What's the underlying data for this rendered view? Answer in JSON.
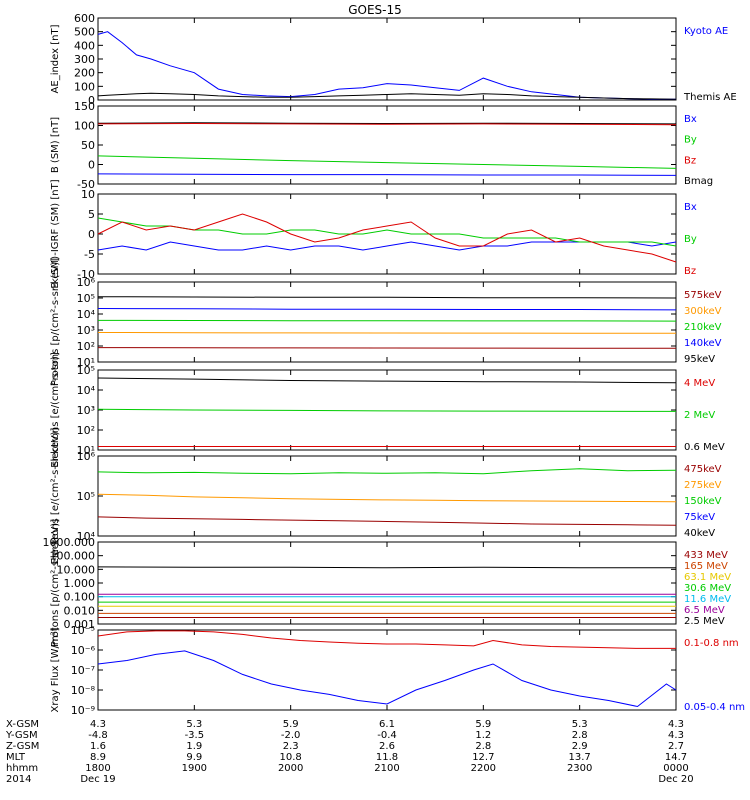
{
  "title": "GOES-15",
  "colors": {
    "black": "#000000",
    "blue": "#0000ff",
    "green": "#00cc00",
    "red": "#dd0000",
    "orange": "#ff9900",
    "darkred": "#990000",
    "yellow": "#e6c800",
    "cyan": "#00bbee",
    "purple": "#990099",
    "darkorange": "#cc4400"
  },
  "chart_data": [
    {
      "type": "line",
      "ylabel": "AE_index [nT]",
      "ylim": [
        0,
        600
      ],
      "ticks": [
        "0",
        "100",
        "200",
        "300",
        "400",
        "500",
        "600"
      ],
      "legend": [
        {
          "name": "Kyoto AE",
          "color": "#0000ff"
        },
        {
          "name": "Themis AE",
          "color": "#000000"
        }
      ],
      "x_hours": [
        0,
        0.1,
        0.25,
        0.4,
        0.55,
        0.75,
        1.0,
        1.25,
        1.5,
        1.75,
        2.0,
        2.25,
        2.5,
        2.75,
        3.0,
        3.25,
        3.5,
        3.75,
        4.0,
        4.25,
        4.5,
        4.75,
        5.0,
        5.25,
        5.5,
        5.75,
        6.0
      ],
      "series": [
        {
          "name": "Kyoto AE",
          "color": "#0000ff",
          "values": [
            480,
            500,
            420,
            330,
            300,
            250,
            200,
            80,
            40,
            30,
            25,
            40,
            80,
            90,
            120,
            110,
            90,
            70,
            160,
            100,
            60,
            40,
            20,
            15,
            10,
            5,
            5
          ]
        },
        {
          "name": "Themis AE",
          "color": "#000000",
          "values": [
            30,
            35,
            40,
            45,
            50,
            45,
            40,
            30,
            25,
            20,
            20,
            25,
            30,
            35,
            40,
            45,
            40,
            35,
            45,
            40,
            30,
            25,
            20,
            15,
            10,
            8,
            5
          ]
        }
      ]
    },
    {
      "type": "line",
      "ylabel": "B (SM) [nT]",
      "ylim": [
        -50,
        150
      ],
      "ticks": [
        "-50",
        "0",
        "50",
        "100",
        "150"
      ],
      "legend": [
        {
          "name": "Bx",
          "color": "#0000ff"
        },
        {
          "name": "By",
          "color": "#00cc00"
        },
        {
          "name": "Bz",
          "color": "#dd0000"
        },
        {
          "name": "Bmag",
          "color": "#000000"
        }
      ],
      "x_hours": [
        0,
        1,
        2,
        3,
        4,
        5,
        6
      ],
      "series": [
        {
          "name": "Bmag",
          "color": "#000000",
          "values": [
            106,
            107,
            106,
            105,
            106,
            105,
            104
          ]
        },
        {
          "name": "Bz",
          "color": "#dd0000",
          "values": [
            104,
            105,
            104,
            103,
            104,
            103,
            102
          ]
        },
        {
          "name": "By",
          "color": "#00cc00",
          "values": [
            22,
            16,
            10,
            5,
            0,
            -5,
            -10
          ]
        },
        {
          "name": "Bx",
          "color": "#0000ff",
          "values": [
            -24,
            -25,
            -26,
            -26,
            -27,
            -27,
            -28
          ]
        }
      ]
    },
    {
      "type": "line",
      "ylabel": "B (SM)-IGRF (SM) [nT]",
      "ylim": [
        -10,
        10
      ],
      "ticks": [
        "-10",
        "-5",
        "0",
        "5",
        "10"
      ],
      "legend": [
        {
          "name": "Bx",
          "color": "#0000ff"
        },
        {
          "name": "By",
          "color": "#00cc00"
        },
        {
          "name": "Bz",
          "color": "#dd0000"
        }
      ],
      "x_hours": [
        0,
        0.25,
        0.5,
        0.75,
        1.0,
        1.25,
        1.5,
        1.75,
        2.0,
        2.25,
        2.5,
        2.75,
        3.0,
        3.25,
        3.5,
        3.75,
        4.0,
        4.25,
        4.5,
        4.75,
        5.0,
        5.25,
        5.5,
        5.75,
        6.0
      ],
      "series": [
        {
          "name": "Bx",
          "color": "#0000ff",
          "values": [
            -4,
            -3,
            -4,
            -2,
            -3,
            -4,
            -4,
            -3,
            -4,
            -3,
            -3,
            -4,
            -3,
            -2,
            -3,
            -4,
            -3,
            -3,
            -2,
            -2,
            -2,
            -2,
            -2,
            -3,
            -2
          ]
        },
        {
          "name": "By",
          "color": "#00cc00",
          "values": [
            4,
            3,
            2,
            2,
            1,
            1,
            0,
            0,
            1,
            1,
            0,
            0,
            1,
            0,
            0,
            0,
            -1,
            -1,
            -1,
            -1,
            -2,
            -2,
            -2,
            -2,
            -3
          ]
        },
        {
          "name": "Bz",
          "color": "#dd0000",
          "values": [
            0,
            3,
            1,
            2,
            1,
            3,
            5,
            3,
            0,
            -2,
            -1,
            1,
            2,
            3,
            -1,
            -3,
            -3,
            0,
            1,
            -2,
            -1,
            -3,
            -4,
            -5,
            -7
          ]
        }
      ]
    },
    {
      "type": "line",
      "log": true,
      "ylabel": "Protons [p/(cm²-s-sr-keV)]",
      "ydecades": [
        1,
        6
      ],
      "ticks": [
        "10¹",
        "10²",
        "10³",
        "10⁴",
        "10⁵",
        "10⁶"
      ],
      "legend": [
        {
          "name": "575keV",
          "color": "#990000"
        },
        {
          "name": "300keV",
          "color": "#ff9900"
        },
        {
          "name": "210keV",
          "color": "#00cc00"
        },
        {
          "name": "140keV",
          "color": "#0000ff"
        },
        {
          "name": "95keV",
          "color": "#000000"
        }
      ],
      "x_hours": [
        0,
        1,
        2,
        3,
        4,
        5,
        6
      ],
      "series": [
        {
          "name": "95keV",
          "color": "#000000",
          "values": [
            120000,
            115000,
            110000,
            110000,
            105000,
            105000,
            100000
          ]
        },
        {
          "name": "140keV",
          "color": "#0000ff",
          "values": [
            22000,
            21000,
            20000,
            20000,
            19000,
            19000,
            18000
          ]
        },
        {
          "name": "210keV",
          "color": "#00cc00",
          "values": [
            4000,
            3900,
            3800,
            3800,
            3700,
            3700,
            3600
          ]
        },
        {
          "name": "300keV",
          "color": "#ff9900",
          "values": [
            700,
            680,
            660,
            650,
            640,
            630,
            620
          ]
        },
        {
          "name": "575keV",
          "color": "#990000",
          "values": [
            80,
            78,
            76,
            75,
            74,
            73,
            72
          ]
        }
      ]
    },
    {
      "type": "line",
      "log": true,
      "ylabel": "Electrons [e/(cm²-s-sr)]",
      "ydecades": [
        1,
        5
      ],
      "ticks": [
        "10¹",
        "10²",
        "10³",
        "10⁴",
        "10⁵"
      ],
      "legend": [
        {
          "name": "4 MeV",
          "color": "#dd0000"
        },
        {
          "name": "2 MeV",
          "color": "#00cc00"
        },
        {
          "name": "0.6 MeV",
          "color": "#000000"
        }
      ],
      "x_hours": [
        0,
        1,
        2,
        3,
        4,
        5,
        6
      ],
      "series": [
        {
          "name": "0.6 MeV",
          "color": "#000000",
          "values": [
            40000,
            35000,
            30000,
            28000,
            26000,
            25000,
            23000
          ]
        },
        {
          "name": "2 MeV",
          "color": "#00cc00",
          "values": [
            1100,
            1000,
            950,
            900,
            880,
            860,
            850
          ]
        },
        {
          "name": "4 MeV",
          "color": "#dd0000",
          "values": [
            15,
            15,
            15,
            15,
            15,
            15,
            15
          ]
        }
      ]
    },
    {
      "type": "line",
      "log": true,
      "ylabel": "Electrons [e/(cm²-s-sr-keV)]",
      "ydecades": [
        4,
        6
      ],
      "ticks": [
        "10⁴",
        "10⁵",
        "10⁶"
      ],
      "legend": [
        {
          "name": "475keV",
          "color": "#990000"
        },
        {
          "name": "275keV",
          "color": "#ff9900"
        },
        {
          "name": "150keV",
          "color": "#00cc00"
        },
        {
          "name": "75keV",
          "color": "#0000ff"
        },
        {
          "name": "40keV",
          "color": "#000000"
        }
      ],
      "x_hours": [
        0,
        0.5,
        1,
        1.5,
        2,
        2.5,
        3,
        3.5,
        4,
        4.5,
        5,
        5.5,
        6
      ],
      "series": [
        {
          "name": "150keV",
          "color": "#00cc00",
          "values": [
            400000,
            380000,
            390000,
            370000,
            360000,
            380000,
            370000,
            380000,
            360000,
            430000,
            480000,
            430000,
            440000
          ]
        },
        {
          "name": "275keV",
          "color": "#ff9900",
          "values": [
            110000,
            105000,
            95000,
            90000,
            85000,
            82000,
            80000,
            78000,
            76000,
            75000,
            74000,
            73000,
            72000
          ]
        },
        {
          "name": "475keV",
          "color": "#990000",
          "values": [
            30000,
            28000,
            27000,
            26000,
            25000,
            24000,
            23000,
            22000,
            21000,
            20000,
            19500,
            19000,
            18500
          ]
        }
      ]
    },
    {
      "type": "line",
      "log": true,
      "ylabel": "Protons [p/(cm²-s-sr-keV)]",
      "ydecades": [
        -3,
        3
      ],
      "ticks": [
        "0.001",
        "0.010",
        "0.100",
        "1.000",
        "10.000",
        "100.000",
        "1000.000"
      ],
      "legend": [
        {
          "name": "433 MeV",
          "color": "#990000"
        },
        {
          "name": "165 MeV",
          "color": "#cc4400"
        },
        {
          "name": "63.1 MeV",
          "color": "#e6c800"
        },
        {
          "name": "30.6 MeV",
          "color": "#00cc00"
        },
        {
          "name": "11.6 MeV",
          "color": "#00bbee"
        },
        {
          "name": "6.5 MeV",
          "color": "#990099"
        },
        {
          "name": "2.5 MeV",
          "color": "#000000"
        }
      ],
      "x_hours": [
        0,
        1,
        2,
        3,
        4,
        5,
        6
      ],
      "series": [
        {
          "name": "2.5 MeV",
          "color": "#000000",
          "values": [
            15,
            14,
            14,
            13,
            14,
            13,
            13
          ]
        },
        {
          "name": "6.5 MeV",
          "color": "#990099",
          "values": [
            0.15,
            0.15,
            0.15,
            0.15,
            0.15,
            0.15,
            0.15
          ]
        },
        {
          "name": "11.6 MeV",
          "color": "#00bbee",
          "values": [
            0.1,
            0.1,
            0.1,
            0.1,
            0.1,
            0.1,
            0.1
          ]
        },
        {
          "name": "30.6 MeV",
          "color": "#00cc00",
          "values": [
            0.04,
            0.04,
            0.04,
            0.04,
            0.04,
            0.04,
            0.04
          ]
        },
        {
          "name": "63.1 MeV",
          "color": "#e6c800",
          "values": [
            0.02,
            0.02,
            0.02,
            0.02,
            0.02,
            0.02,
            0.02
          ]
        },
        {
          "name": "165 MeV",
          "color": "#cc4400",
          "values": [
            0.006,
            0.006,
            0.006,
            0.006,
            0.006,
            0.006,
            0.006
          ]
        },
        {
          "name": "433 MeV",
          "color": "#990000",
          "values": [
            0.003,
            0.003,
            0.003,
            0.003,
            0.003,
            0.003,
            0.003
          ]
        }
      ]
    },
    {
      "type": "line",
      "log": true,
      "ylabel": "Xray Flux [W/m²]",
      "ydecades": [
        -9,
        -5
      ],
      "ticks": [
        "10⁻⁹",
        "10⁻⁸",
        "10⁻⁷",
        "10⁻⁶",
        "10⁻⁵"
      ],
      "legend": [
        {
          "name": "0.1-0.8 nm",
          "color": "#dd0000"
        },
        {
          "name": "0.05-0.4 nm",
          "color": "#0000ff"
        }
      ],
      "x_hours": [
        0,
        0.3,
        0.6,
        0.9,
        1.2,
        1.5,
        1.8,
        2.1,
        2.4,
        2.7,
        3.0,
        3.3,
        3.6,
        3.9,
        4.1,
        4.4,
        4.7,
        5.0,
        5.3,
        5.6,
        5.9,
        6.0
      ],
      "series": [
        {
          "name": "0.1-0.8 nm",
          "color": "#dd0000",
          "values": [
            5e-06,
            8e-06,
            9e-06,
            9e-06,
            8e-06,
            6e-06,
            4e-06,
            3e-06,
            2.5e-06,
            2.2e-06,
            2e-06,
            2e-06,
            1.8e-06,
            1.6e-06,
            3e-06,
            1.8e-06,
            1.5e-06,
            1.4e-06,
            1.3e-06,
            1.2e-06,
            1.2e-06,
            1.2e-06
          ]
        },
        {
          "name": "0.05-0.4 nm",
          "color": "#0000ff",
          "values": [
            2e-07,
            3e-07,
            6e-07,
            9e-07,
            3e-07,
            6e-08,
            2e-08,
            1e-08,
            6e-09,
            3e-09,
            2e-09,
            1e-08,
            3e-08,
            1e-07,
            2e-07,
            3e-08,
            1e-08,
            5e-09,
            3e-09,
            1.5e-09,
            2e-08,
            1e-08
          ]
        }
      ]
    }
  ],
  "xaxis": {
    "rows": [
      {
        "label": "X-GSM",
        "values": [
          "4.3",
          "5.3",
          "5.9",
          "6.1",
          "5.9",
          "5.3",
          "4.3"
        ]
      },
      {
        "label": "Y-GSM",
        "values": [
          "-4.8",
          "-3.5",
          "-2.0",
          "-0.4",
          "1.2",
          "2.8",
          "4.3"
        ]
      },
      {
        "label": "Z-GSM",
        "values": [
          "1.6",
          "1.9",
          "2.3",
          "2.6",
          "2.8",
          "2.9",
          "2.7"
        ]
      },
      {
        "label": "MLT",
        "values": [
          "8.9",
          "9.9",
          "10.8",
          "11.8",
          "12.7",
          "13.7",
          "14.7"
        ]
      },
      {
        "label": "hhmm",
        "values": [
          "1800",
          "1900",
          "2000",
          "2100",
          "2200",
          "2300",
          "0000"
        ]
      },
      {
        "label": "2014",
        "values": [
          "Dec 19",
          "",
          "",
          "",
          "",
          "",
          "Dec 20"
        ]
      }
    ]
  }
}
